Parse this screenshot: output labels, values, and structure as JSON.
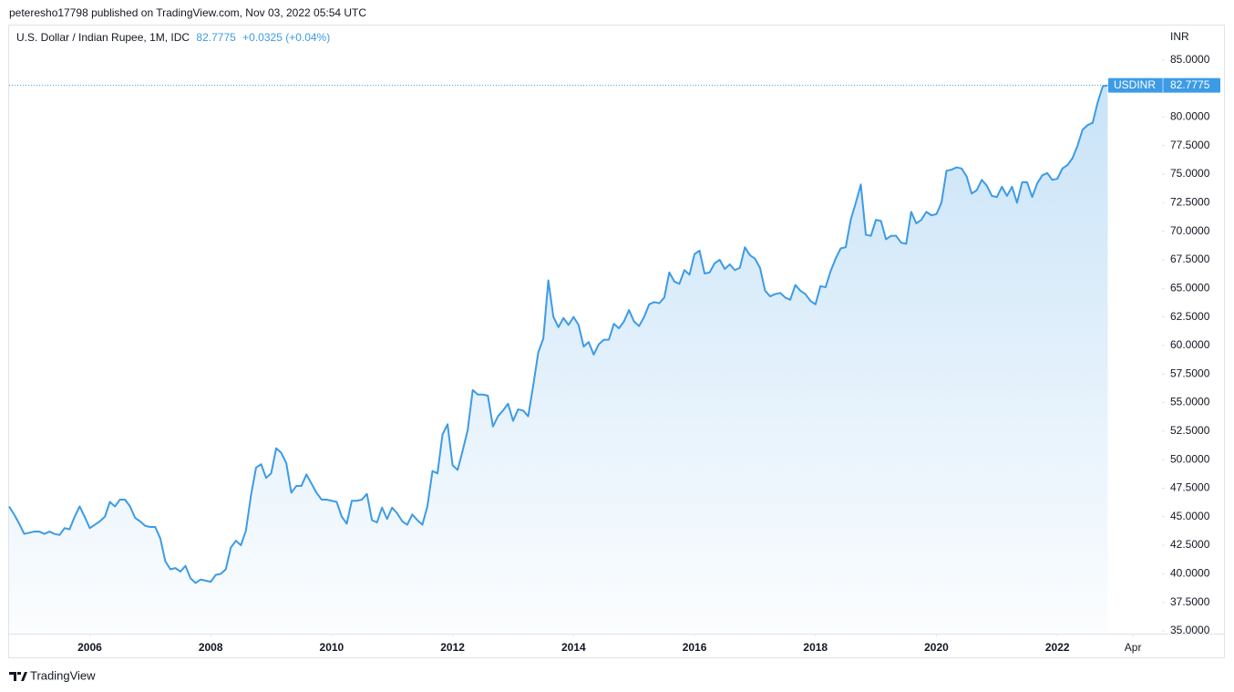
{
  "header": "peteresho17798 published on TradingView.com, Nov 03, 2022 05:54 UTC",
  "footer": "TradingView",
  "chart_data": {
    "type": "area",
    "title": "U.S. Dollar / Indian Rupee, 1M, IDC",
    "change": "+0.0325 (+0.04%)",
    "y_axis_label": "INR",
    "grid": false,
    "xlim": [
      2004.667,
      2023.73
    ],
    "ylim": [
      34.76,
      88.1
    ],
    "xticks": [
      2006,
      2008,
      2010,
      2012,
      2014,
      2016,
      2018,
      2020,
      2022,
      {
        "value": 2023.25,
        "label": "Apr"
      }
    ],
    "yticks": [
      {
        "value": 35,
        "label": "35.0000"
      },
      {
        "value": 37.5,
        "label": "37.5000"
      },
      {
        "value": 40,
        "label": "40.0000"
      },
      {
        "value": 42.5,
        "label": "42.5000"
      },
      {
        "value": 45,
        "label": "45.0000"
      },
      {
        "value": 47.5,
        "label": "47.5000"
      },
      {
        "value": 50,
        "label": "50.0000"
      },
      {
        "value": 52.5,
        "label": "52.5000"
      },
      {
        "value": 55,
        "label": "55.0000"
      },
      {
        "value": 57.5,
        "label": "57.5000"
      },
      {
        "value": 60,
        "label": "60.0000"
      },
      {
        "value": 62.5,
        "label": "62.5000"
      },
      {
        "value": 65,
        "label": "65.0000"
      },
      {
        "value": 67.5,
        "label": "67.5000"
      },
      {
        "value": 70,
        "label": "70.0000"
      },
      {
        "value": 72.5,
        "label": "72.5000"
      },
      {
        "value": 75,
        "label": "75.0000"
      },
      {
        "value": 77.5,
        "label": "77.5000"
      },
      {
        "value": 80,
        "label": "80.0000"
      },
      {
        "value": 85,
        "label": "85.0000"
      }
    ],
    "x": [
      2004.667,
      2004.75,
      2004.833,
      2004.917,
      2005,
      2005.083,
      2005.167,
      2005.25,
      2005.333,
      2005.417,
      2005.5,
      2005.583,
      2005.667,
      2005.75,
      2005.833,
      2005.917,
      2006,
      2006.083,
      2006.167,
      2006.25,
      2006.333,
      2006.417,
      2006.5,
      2006.583,
      2006.667,
      2006.75,
      2006.833,
      2006.917,
      2007,
      2007.083,
      2007.167,
      2007.25,
      2007.333,
      2007.417,
      2007.5,
      2007.583,
      2007.667,
      2007.75,
      2007.833,
      2007.917,
      2008,
      2008.083,
      2008.167,
      2008.25,
      2008.333,
      2008.417,
      2008.5,
      2008.583,
      2008.667,
      2008.75,
      2008.833,
      2008.917,
      2009,
      2009.083,
      2009.167,
      2009.25,
      2009.333,
      2009.417,
      2009.5,
      2009.583,
      2009.667,
      2009.75,
      2009.833,
      2009.917,
      2010,
      2010.083,
      2010.167,
      2010.25,
      2010.333,
      2010.417,
      2010.5,
      2010.583,
      2010.667,
      2010.75,
      2010.833,
      2010.917,
      2011,
      2011.083,
      2011.167,
      2011.25,
      2011.333,
      2011.417,
      2011.5,
      2011.583,
      2011.667,
      2011.75,
      2011.833,
      2011.917,
      2012,
      2012.083,
      2012.167,
      2012.25,
      2012.333,
      2012.417,
      2012.5,
      2012.583,
      2012.667,
      2012.75,
      2012.833,
      2012.917,
      2013,
      2013.083,
      2013.167,
      2013.25,
      2013.333,
      2013.417,
      2013.5,
      2013.583,
      2013.667,
      2013.75,
      2013.833,
      2013.917,
      2014,
      2014.083,
      2014.167,
      2014.25,
      2014.333,
      2014.417,
      2014.5,
      2014.583,
      2014.667,
      2014.75,
      2014.833,
      2014.917,
      2015,
      2015.083,
      2015.167,
      2015.25,
      2015.333,
      2015.417,
      2015.5,
      2015.583,
      2015.667,
      2015.75,
      2015.833,
      2015.917,
      2016,
      2016.083,
      2016.167,
      2016.25,
      2016.333,
      2016.417,
      2016.5,
      2016.583,
      2016.667,
      2016.75,
      2016.833,
      2016.917,
      2017,
      2017.083,
      2017.167,
      2017.25,
      2017.333,
      2017.417,
      2017.5,
      2017.583,
      2017.667,
      2017.75,
      2017.833,
      2017.917,
      2018,
      2018.083,
      2018.167,
      2018.25,
      2018.333,
      2018.417,
      2018.5,
      2018.583,
      2018.667,
      2018.75,
      2018.833,
      2018.917,
      2019,
      2019.083,
      2019.167,
      2019.25,
      2019.333,
      2019.417,
      2019.5,
      2019.583,
      2019.667,
      2019.75,
      2019.833,
      2019.917,
      2020,
      2020.083,
      2020.167,
      2020.25,
      2020.333,
      2020.417,
      2020.5,
      2020.583,
      2020.667,
      2020.75,
      2020.833,
      2020.917,
      2021,
      2021.083,
      2021.167,
      2021.25,
      2021.333,
      2021.417,
      2021.5,
      2021.583,
      2021.667,
      2021.75,
      2021.833,
      2021.917,
      2022,
      2022.083,
      2022.167,
      2022.25,
      2022.333,
      2022.417,
      2022.5,
      2022.583,
      2022.667,
      2022.75,
      2022.833
    ],
    "series": [
      {
        "name": "USDINR",
        "color": "#3d9be6",
        "values": [
          45.9,
          45.2,
          44.4,
          43.5,
          43.6,
          43.7,
          43.7,
          43.5,
          43.7,
          43.5,
          43.4,
          44.0,
          43.9,
          45.0,
          45.9,
          45.0,
          44.0,
          44.3,
          44.6,
          45.0,
          46.3,
          45.9,
          46.5,
          46.5,
          45.9,
          44.9,
          44.6,
          44.2,
          44.1,
          44.1,
          43.1,
          41.1,
          40.4,
          40.5,
          40.2,
          40.7,
          39.6,
          39.2,
          39.5,
          39.4,
          39.3,
          39.9,
          40.0,
          40.4,
          42.3,
          42.9,
          42.5,
          43.8,
          46.9,
          49.3,
          49.6,
          48.4,
          48.8,
          51.0,
          50.6,
          49.7,
          47.1,
          47.7,
          47.7,
          48.7,
          47.9,
          47.1,
          46.5,
          46.5,
          46.4,
          46.3,
          45.0,
          44.4,
          46.4,
          46.4,
          46.5,
          47.0,
          44.7,
          44.5,
          45.8,
          44.8,
          45.8,
          45.3,
          44.6,
          44.3,
          45.2,
          44.7,
          44.3,
          45.9,
          49.0,
          48.8,
          52.2,
          53.1,
          49.5,
          49.1,
          50.8,
          52.6,
          56.1,
          55.7,
          55.7,
          55.6,
          52.9,
          53.8,
          54.3,
          54.9,
          53.4,
          54.4,
          54.3,
          53.8,
          56.5,
          59.4,
          60.6,
          65.7,
          62.5,
          61.6,
          62.4,
          61.8,
          62.5,
          61.8,
          59.9,
          60.3,
          59.2,
          60.1,
          60.5,
          60.5,
          61.9,
          61.5,
          62.1,
          63.1,
          62.1,
          61.7,
          62.5,
          63.6,
          63.8,
          63.7,
          64.2,
          66.4,
          65.6,
          65.4,
          66.6,
          66.2,
          68.0,
          68.3,
          66.3,
          66.4,
          67.2,
          67.5,
          66.7,
          67.1,
          66.6,
          66.8,
          68.6,
          67.9,
          67.6,
          66.8,
          64.8,
          64.3,
          64.5,
          64.6,
          64.2,
          64.0,
          65.3,
          64.8,
          64.5,
          63.9,
          63.6,
          65.2,
          65.1,
          66.5,
          67.6,
          68.5,
          68.6,
          71.0,
          72.5,
          74.1,
          69.7,
          69.6,
          71.0,
          70.9,
          69.3,
          69.6,
          69.6,
          69.0,
          68.9,
          71.7,
          70.7,
          71.0,
          71.7,
          71.4,
          71.5,
          72.5,
          75.3,
          75.4,
          75.6,
          75.5,
          74.8,
          73.3,
          73.6,
          74.5,
          74.0,
          73.1,
          73.0,
          73.9,
          73.1,
          73.9,
          72.5,
          74.3,
          74.3,
          73.0,
          74.2,
          74.9,
          75.1,
          74.5,
          74.6,
          75.5,
          75.8,
          76.4,
          77.5,
          78.9,
          79.3,
          79.5,
          81.3,
          82.7,
          82.7775
        ]
      }
    ]
  }
}
